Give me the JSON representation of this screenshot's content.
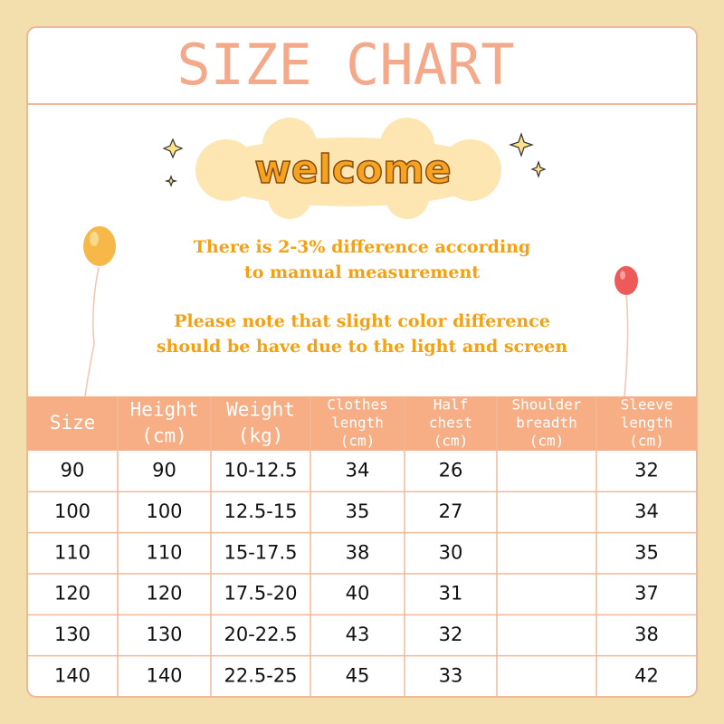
{
  "header": {
    "title": "SIZE CHART"
  },
  "banner": {
    "title": "welcome"
  },
  "notes": [
    [
      "There is 2-3% difference according",
      "to manual measurement"
    ],
    [
      "Please note that slight color difference",
      "should be have due to the light and screen"
    ]
  ],
  "table": {
    "header": [
      [
        "Size"
      ],
      [
        "Height",
        "(cm)"
      ],
      [
        "Weight",
        "(kg)"
      ],
      [
        "Clothes",
        "length",
        "(cm)"
      ],
      [
        "Half",
        "chest",
        "(cm)"
      ],
      [
        "Shoulder",
        "breadth",
        "(cm)"
      ],
      [
        "Sleeve",
        "length",
        "(cm)"
      ]
    ],
    "rows": [
      [
        "90",
        "90",
        "10-12.5",
        "34",
        "26",
        null,
        "32"
      ],
      [
        "100",
        "100",
        "12.5-15",
        "35",
        "27",
        null,
        "34"
      ],
      [
        "110",
        "110",
        "15-17.5",
        "38",
        "30",
        null,
        "35"
      ],
      [
        "120",
        "120",
        "17.5-20",
        "40",
        "31",
        null,
        "37"
      ],
      [
        "130",
        "130",
        "20-22.5",
        "43",
        "32",
        null,
        "38"
      ],
      [
        "140",
        "140",
        "22.5-25",
        "45",
        "33",
        null,
        "42"
      ]
    ]
  }
}
